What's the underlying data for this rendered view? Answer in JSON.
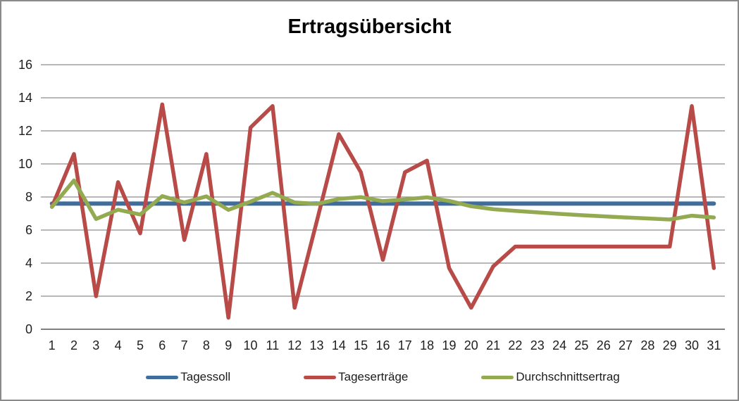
{
  "chart": {
    "title": "Ertragsübersicht"
  },
  "chart_data": {
    "type": "line",
    "title": "Ertragsübersicht",
    "x": [
      1,
      2,
      3,
      4,
      5,
      6,
      7,
      8,
      9,
      10,
      11,
      12,
      13,
      14,
      15,
      16,
      17,
      18,
      19,
      20,
      21,
      22,
      23,
      24,
      25,
      26,
      27,
      28,
      29,
      30,
      31
    ],
    "series": [
      {
        "name": "Tagessoll",
        "color": "#3f6e9d",
        "stroke_width": 6,
        "values": [
          7.6,
          7.6,
          7.6,
          7.6,
          7.6,
          7.6,
          7.6,
          7.6,
          7.6,
          7.6,
          7.6,
          7.6,
          7.6,
          7.6,
          7.6,
          7.6,
          7.6,
          7.6,
          7.6,
          7.6,
          7.6,
          7.6,
          7.6,
          7.6,
          7.6,
          7.6,
          7.6,
          7.6,
          7.6,
          7.6,
          7.6
        ]
      },
      {
        "name": "Tageserträge",
        "color": "#b84a47",
        "stroke_width": 5.5,
        "values": [
          7.4,
          10.6,
          2.0,
          8.9,
          5.8,
          13.6,
          5.4,
          10.6,
          0.7,
          12.2,
          13.5,
          1.3,
          6.5,
          11.8,
          9.5,
          4.2,
          9.5,
          10.2,
          3.7,
          1.3,
          3.8,
          5.0,
          5.0,
          5.0,
          5.0,
          5.0,
          5.0,
          5.0,
          5.0,
          13.5,
          3.7
        ]
      },
      {
        "name": "Durchschnittsertrag",
        "color": "#93aa50",
        "stroke_width": 5.5,
        "values": [
          7.4,
          9.0,
          6.67,
          7.23,
          6.94,
          8.05,
          7.67,
          8.04,
          7.22,
          7.72,
          8.25,
          7.67,
          7.58,
          7.88,
          7.99,
          7.75,
          7.85,
          7.98,
          7.76,
          7.44,
          7.26,
          7.16,
          7.07,
          6.98,
          6.9,
          6.83,
          6.76,
          6.7,
          6.64,
          6.87,
          6.76
        ]
      }
    ],
    "ylim": [
      0,
      16
    ],
    "yticks": [
      0,
      2,
      4,
      6,
      8,
      10,
      12,
      14,
      16
    ],
    "grid": true,
    "gridline_color": "#8e8e8e",
    "axis_color": "#7f7f7f",
    "legend_position": "bottom"
  }
}
